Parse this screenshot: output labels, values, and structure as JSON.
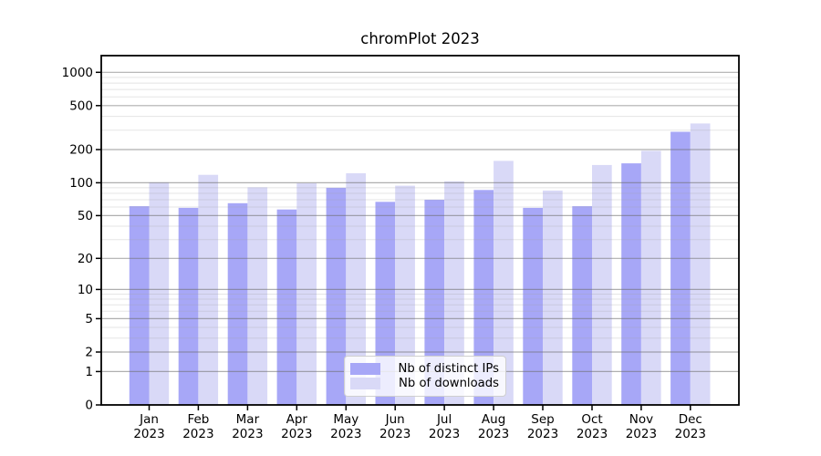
{
  "chart_data": {
    "type": "bar",
    "title": "chromPlot 2023",
    "categories": [
      "Jan 2023",
      "Feb 2023",
      "Mar 2023",
      "Apr 2023",
      "May 2023",
      "Jun 2023",
      "Jul 2023",
      "Aug 2023",
      "Sep 2023",
      "Oct 2023",
      "Nov 2023",
      "Dec 2023"
    ],
    "months": [
      "Jan",
      "Feb",
      "Mar",
      "Apr",
      "May",
      "Jun",
      "Jul",
      "Aug",
      "Sep",
      "Oct",
      "Nov",
      "Dec"
    ],
    "year_label": "2023",
    "series": [
      {
        "name": "Nb of distinct IPs",
        "color": "#a7a7f7",
        "values": [
          61,
          59,
          65,
          57,
          90,
          67,
          70,
          86,
          59,
          61,
          150,
          290
        ]
      },
      {
        "name": "Nb of downloads",
        "color": "#d9d9f7",
        "values": [
          101,
          118,
          91,
          99,
          122,
          94,
          103,
          158,
          85,
          145,
          195,
          345
        ]
      }
    ],
    "y_axis": {
      "scale": "log1p",
      "tick_labels": [
        "0",
        "1",
        "2",
        "5",
        "10",
        "20",
        "50",
        "100",
        "200",
        "500",
        "1000"
      ],
      "major_ticks": [
        0,
        1,
        2,
        5,
        10,
        20,
        50,
        100,
        200,
        500,
        1000
      ],
      "minor_gridlines": [
        3,
        4,
        6,
        7,
        8,
        9,
        30,
        40,
        60,
        70,
        80,
        90,
        300,
        400,
        600,
        700,
        800,
        900
      ],
      "ymax": 1400
    },
    "legend": {
      "position": "lower center",
      "entries": [
        "Nb of distinct IPs",
        "Nb of downloads"
      ]
    },
    "grid": true,
    "colors": {
      "bar_dark": "#a7a7f7",
      "bar_light": "#d9d9f7",
      "grid_major": "#afafaf",
      "grid_minor": "#e7e7e7",
      "axis": "#000000"
    }
  }
}
